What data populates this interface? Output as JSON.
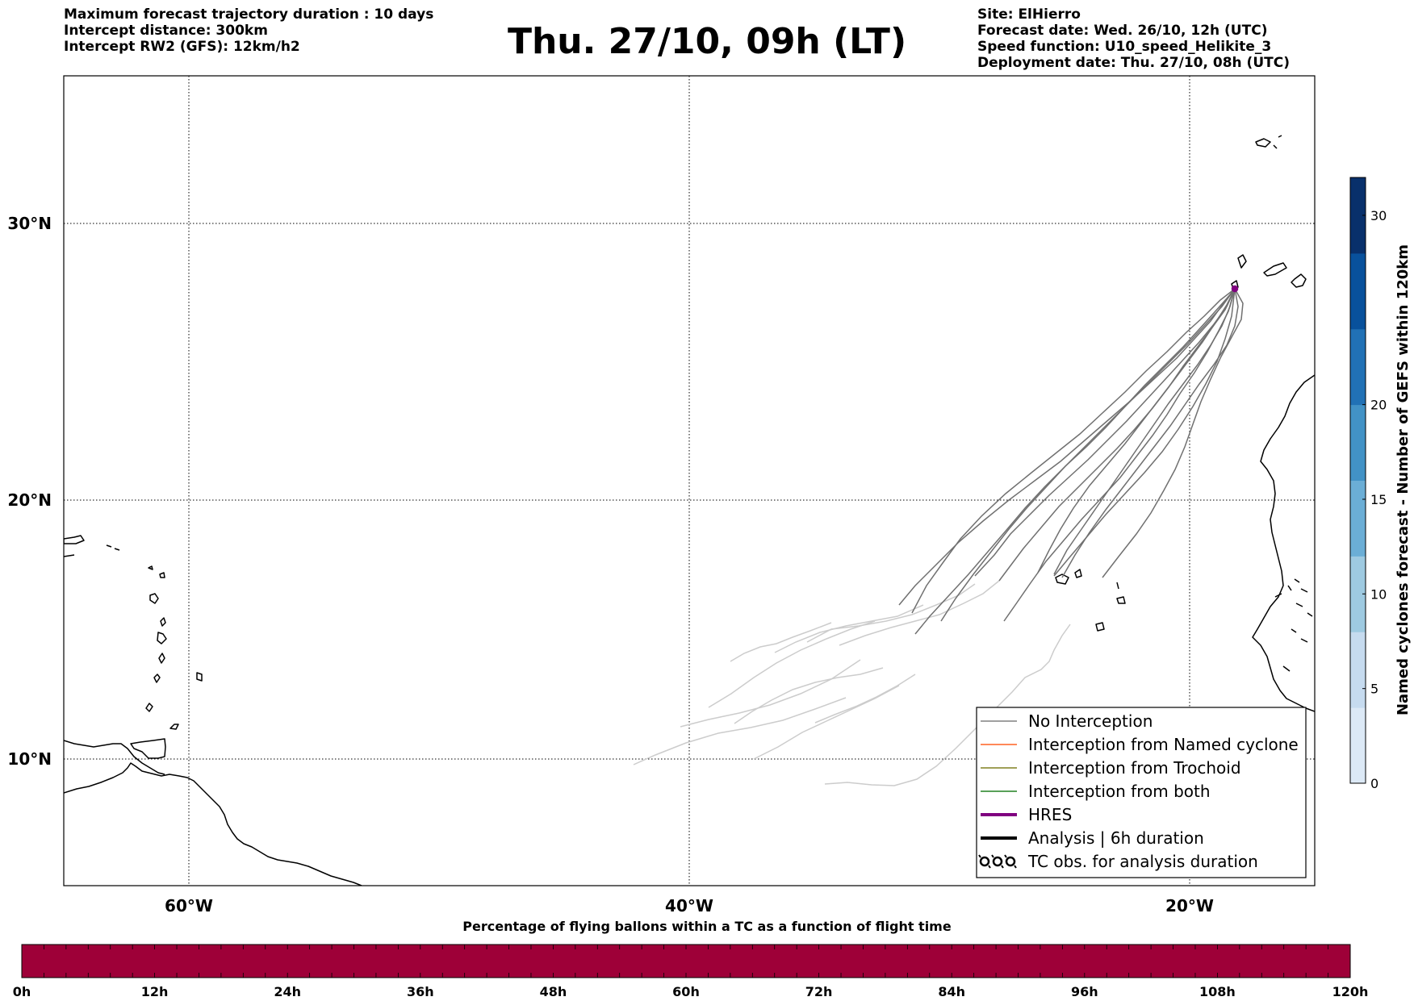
{
  "header": {
    "left_lines": [
      "Maximum forecast trajectory duration : 10 days",
      "Intercept distance: 300km",
      "Intercept RW2 (GFS):  12km/h2"
    ],
    "title": "Thu. 27/10, 09h (LT)",
    "right_lines": [
      "Site: ElHierro",
      "Forecast date: Wed. 26/10, 12h (UTC)",
      "Speed function: U10_speed_Helikite_3",
      "Deployment date: Thu. 27/10, 08h (UTC)"
    ]
  },
  "map": {
    "lat_labels": [
      "30°N",
      "20°N",
      "10°N"
    ],
    "lon_labels": [
      "60°W",
      "40°W",
      "20°W"
    ],
    "gridlines": true,
    "site_marker_color": "#800080"
  },
  "legend": {
    "items": [
      {
        "label": "No Interception",
        "color": "#808080",
        "style": "thin-line"
      },
      {
        "label": "Interception from Named cyclone",
        "color": "#ff6020",
        "style": "thin-line"
      },
      {
        "label": "Interception from Trochoid",
        "color": "#808020",
        "style": "thin-line"
      },
      {
        "label": "Interception from both",
        "color": "#208020",
        "style": "thin-line"
      },
      {
        "label": "HRES",
        "color": "#800080",
        "style": "thick-line"
      },
      {
        "label": "Analysis | 6h duration",
        "color": "#000000",
        "style": "thick-line"
      },
      {
        "label": "TC obs. for analysis duration",
        "color": "#000000",
        "style": "cyclone-symbols"
      }
    ]
  },
  "colorbar": {
    "title": "Named cyclones forecast - Number of GEFS within 120km",
    "min": 0,
    "max": 32,
    "ticks": [
      "0",
      "5",
      "10",
      "15",
      "20",
      "30"
    ],
    "colors": [
      "#dce9f6",
      "#c6dbef",
      "#9ecae1",
      "#6baed6",
      "#4292c6",
      "#2171b5",
      "#08519c",
      "#08306b"
    ]
  },
  "timebar": {
    "title": "Percentage of flying ballons within a TC as a function of flight time",
    "labels": [
      "0h",
      "12h",
      "24h",
      "36h",
      "48h",
      "60h",
      "72h",
      "84h",
      "96h",
      "108h",
      "120h"
    ],
    "fill_color": "#9e0038"
  }
}
